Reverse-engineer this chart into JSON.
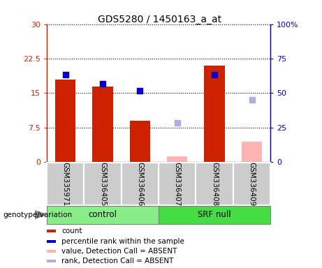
{
  "title": "GDS5280 / 1450163_a_at",
  "samples": [
    "GSM335971",
    "GSM336405",
    "GSM336406",
    "GSM336407",
    "GSM336408",
    "GSM336409"
  ],
  "groups": [
    "control",
    "control",
    "control",
    "SRF null",
    "SRF null",
    "SRF null"
  ],
  "count_values": [
    18.0,
    16.5,
    9.0,
    null,
    21.0,
    null
  ],
  "rank_values": [
    19.0,
    17.0,
    15.5,
    null,
    19.0,
    null
  ],
  "count_absent": [
    null,
    null,
    null,
    1.2,
    null,
    4.5
  ],
  "rank_absent": [
    null,
    null,
    null,
    8.5,
    null,
    13.5
  ],
  "ylim_left": [
    0,
    30
  ],
  "ylim_right": [
    0,
    100
  ],
  "yticks_left": [
    0,
    7.5,
    15,
    22.5,
    30
  ],
  "yticks_right": [
    0,
    25,
    50,
    75,
    100
  ],
  "ytick_labels_left": [
    "0",
    "7.5",
    "15",
    "22.5",
    "30"
  ],
  "ytick_labels_right": [
    "0",
    "25",
    "50",
    "75",
    "100%"
  ],
  "bar_color_present": "#cc2200",
  "bar_color_absent": "#ffb3b3",
  "dot_color_present": "#0000cc",
  "dot_color_absent": "#aab0dd",
  "group_control_color": "#88ee88",
  "group_srfnull_color": "#44dd44",
  "xlabel_area_color": "#cccccc",
  "legend_items": [
    "count",
    "percentile rank within the sample",
    "value, Detection Call = ABSENT",
    "rank, Detection Call = ABSENT"
  ],
  "legend_colors": [
    "#cc2200",
    "#0000cc",
    "#ffb3b3",
    "#aab0dd"
  ],
  "bar_width": 0.25,
  "dot_size": 28,
  "genotype_label": "genotype/variation"
}
